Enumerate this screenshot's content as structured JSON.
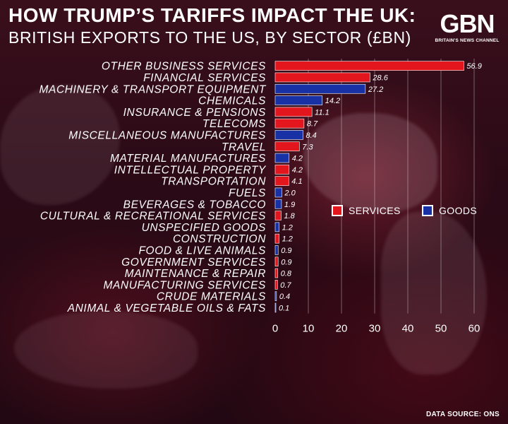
{
  "header": {
    "title_line1": "HOW TRUMP’S TARIFFS IMPACT THE UK:",
    "title_line2": "BRITISH EXPORTS TO THE US, BY SECTOR (£BN)"
  },
  "logo": {
    "mark": "GBN",
    "subtitle": "BRITAIN'S NEWS CHANNEL"
  },
  "colors": {
    "services": "#e3161e",
    "goods": "#1832a6"
  },
  "legend": {
    "services": "SERVICES",
    "goods": "GOODS"
  },
  "chart_data": {
    "type": "bar",
    "orientation": "horizontal",
    "title": "BRITISH EXPORTS TO THE US, BY SECTOR (£BN)",
    "xlim": [
      0,
      60
    ],
    "xticks": [
      0,
      10,
      20,
      30,
      40,
      50,
      60
    ],
    "grid": true,
    "legend_position": "center-right",
    "categories": [
      "OTHER BUSINESS SERVICES",
      "FINANCIAL SERVICES",
      "MACHINERY & TRANSPORT EQUIPMENT",
      "CHEMICALS",
      "INSURANCE & PENSIONS",
      "TELECOMS",
      "MISCELLANEOUS MANUFACTURES",
      "TRAVEL",
      "MATERIAL MANUFACTURES",
      "INTELLECTUAL PROPERTY",
      "TRANSPORTATION",
      "FUELS",
      "BEVERAGES & TOBACCO",
      "CULTURAL & RECREATIONAL SERVICES",
      "UNSPECIFIED GOODS",
      "CONSTRUCTION",
      "FOOD & LIVE ANIMALS",
      "GOVERNMENT SERVICES",
      "MAINTENANCE & REPAIR",
      "MANUFACTURING SERVICES",
      "CRUDE MATERIALS",
      "ANIMAL & VEGETABLE OILS & FATS"
    ],
    "values": [
      56.9,
      28.6,
      27.2,
      14.2,
      11.1,
      8.7,
      8.4,
      7.3,
      4.2,
      4.2,
      4.1,
      2.0,
      1.9,
      1.8,
      1.2,
      1.2,
      0.9,
      0.9,
      0.8,
      0.7,
      0.4,
      0.1
    ],
    "value_labels": [
      "56.9",
      "28.6",
      "27.2",
      "14.2",
      "11.1",
      "8.7",
      "8.4",
      "7.3",
      "4.2",
      "4.2",
      "4.1",
      "2.0",
      "1.9",
      "1.8",
      "1.2",
      "1.2",
      "0.9",
      "0.9",
      "0.8",
      "0.7",
      "0.4",
      "0.1"
    ],
    "types": [
      "services",
      "services",
      "goods",
      "goods",
      "services",
      "services",
      "goods",
      "services",
      "goods",
      "services",
      "services",
      "goods",
      "goods",
      "services",
      "goods",
      "services",
      "goods",
      "services",
      "services",
      "services",
      "goods",
      "goods"
    ]
  },
  "footer": {
    "source": "DATA SOURCE: ONS"
  }
}
